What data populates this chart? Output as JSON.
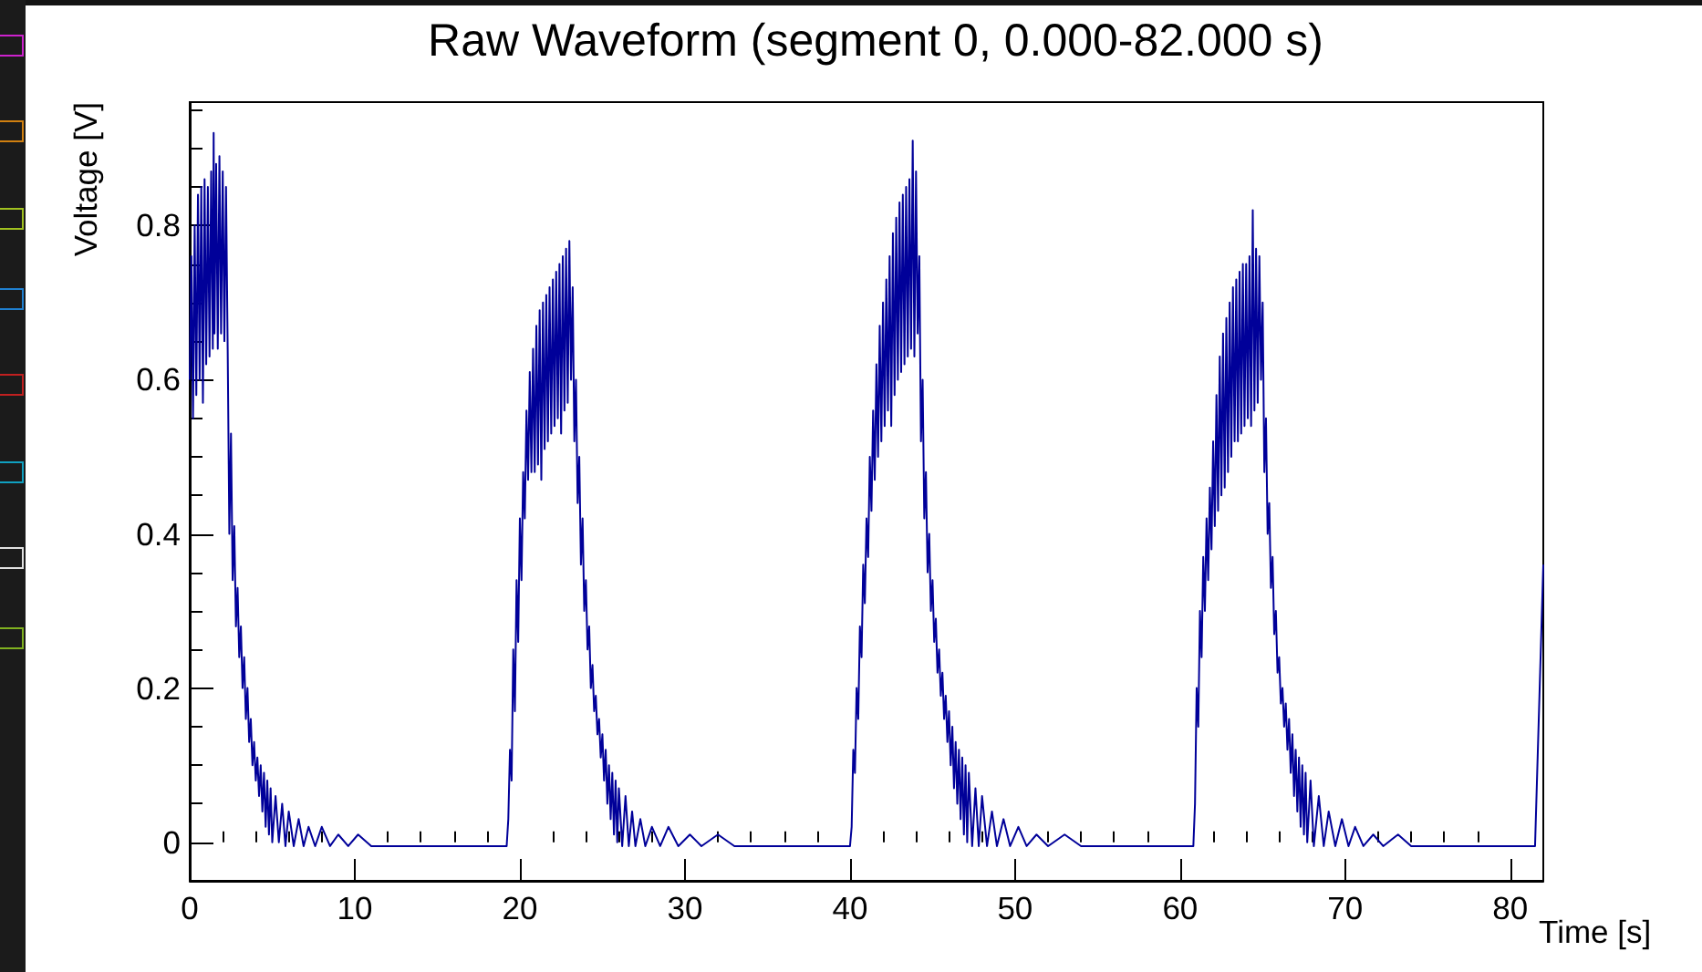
{
  "chart_data": {
    "type": "line",
    "title": "Raw Waveform (segment 0, 0.000-82.000 s)",
    "xlabel": "Time [s]",
    "ylabel": "Voltage [V]",
    "xlim": [
      0,
      82
    ],
    "ylim": [
      -0.05,
      0.96
    ],
    "xticks": [
      0,
      {
        "value": 2,
        "label": null
      },
      {
        "value": 4,
        "label": null
      },
      {
        "value": 6,
        "label": null
      },
      {
        "value": 8,
        "label": null
      },
      10,
      {
        "value": 12,
        "label": null
      },
      {
        "value": 14,
        "label": null
      },
      {
        "value": 16,
        "label": null
      },
      {
        "value": 18,
        "label": null
      },
      20,
      {
        "value": 22,
        "label": null
      },
      {
        "value": 24,
        "label": null
      },
      {
        "value": 26,
        "label": null
      },
      {
        "value": 28,
        "label": null
      },
      30,
      {
        "value": 32,
        "label": null
      },
      {
        "value": 34,
        "label": null
      },
      {
        "value": 36,
        "label": null
      },
      {
        "value": 38,
        "label": null
      },
      40,
      {
        "value": 42,
        "label": null
      },
      {
        "value": 44,
        "label": null
      },
      {
        "value": 46,
        "label": null
      },
      {
        "value": 48,
        "label": null
      },
      50,
      {
        "value": 52,
        "label": null
      },
      {
        "value": 54,
        "label": null
      },
      {
        "value": 56,
        "label": null
      },
      {
        "value": 58,
        "label": null
      },
      60,
      {
        "value": 62,
        "label": null
      },
      {
        "value": 64,
        "label": null
      },
      {
        "value": 66,
        "label": null
      },
      {
        "value": 68,
        "label": null
      },
      70,
      {
        "value": 72,
        "label": null
      },
      {
        "value": 74,
        "label": null
      },
      {
        "value": 76,
        "label": null
      },
      {
        "value": 78,
        "label": null
      },
      80
    ],
    "yticks": [
      0,
      {
        "value": 0.05,
        "label": null
      },
      {
        "value": 0.1,
        "label": null
      },
      {
        "value": 0.15,
        "label": null
      },
      0.2,
      {
        "value": 0.25,
        "label": null
      },
      {
        "value": 0.3,
        "label": null
      },
      {
        "value": 0.35,
        "label": null
      },
      0.4,
      {
        "value": 0.45,
        "label": null
      },
      {
        "value": 0.5,
        "label": null
      },
      {
        "value": 0.55,
        "label": null
      },
      0.6,
      {
        "value": 0.65,
        "label": null
      },
      {
        "value": 0.7,
        "label": null
      },
      {
        "value": 0.75,
        "label": null
      },
      0.8,
      {
        "value": 0.85,
        "label": null
      },
      {
        "value": 0.9,
        "label": null
      },
      {
        "value": 0.95,
        "label": null
      }
    ],
    "color": "#000099",
    "x": [
      0,
      0.1,
      0.2,
      0.3,
      0.4,
      0.5,
      0.6,
      0.7,
      0.8,
      0.9,
      1.0,
      1.1,
      1.2,
      1.3,
      1.4,
      1.45,
      1.5,
      1.6,
      1.7,
      1.8,
      1.9,
      2.0,
      2.1,
      2.2,
      2.3,
      2.4,
      2.5,
      2.6,
      2.7,
      2.8,
      2.9,
      3.0,
      3.1,
      3.2,
      3.3,
      3.4,
      3.5,
      3.6,
      3.7,
      3.8,
      3.9,
      4.0,
      4.1,
      4.2,
      4.3,
      4.4,
      4.5,
      4.6,
      4.7,
      4.8,
      4.9,
      5.0,
      5.2,
      5.4,
      5.6,
      5.8,
      6.0,
      6.3,
      6.6,
      6.9,
      7.2,
      7.6,
      8.0,
      8.5,
      9.0,
      9.6,
      10.2,
      11,
      19.1,
      19.2,
      19.3,
      19.4,
      19.5,
      19.6,
      19.7,
      19.8,
      19.9,
      20.0,
      20.1,
      20.2,
      20.3,
      20.4,
      20.5,
      20.6,
      20.7,
      20.8,
      20.9,
      21.0,
      21.1,
      21.2,
      21.3,
      21.4,
      21.5,
      21.6,
      21.7,
      21.8,
      21.9,
      22.0,
      22.1,
      22.2,
      22.3,
      22.4,
      22.5,
      22.6,
      22.7,
      22.8,
      22.9,
      23.0,
      23.1,
      23.2,
      23.3,
      23.4,
      23.5,
      23.6,
      23.7,
      23.8,
      23.9,
      24.0,
      24.1,
      24.2,
      24.3,
      24.4,
      24.5,
      24.6,
      24.7,
      24.8,
      24.9,
      25.0,
      25.1,
      25.2,
      25.3,
      25.4,
      25.5,
      25.6,
      25.7,
      25.8,
      25.9,
      26.0,
      26.2,
      26.4,
      26.6,
      26.8,
      27.0,
      27.3,
      27.6,
      28.0,
      28.5,
      29.0,
      29.6,
      30.3,
      31.0,
      32,
      33,
      39.9,
      40.0,
      40.1,
      40.2,
      40.3,
      40.4,
      40.5,
      40.6,
      40.7,
      40.8,
      40.9,
      41.0,
      41.1,
      41.2,
      41.3,
      41.4,
      41.5,
      41.6,
      41.7,
      41.8,
      41.9,
      42.0,
      42.1,
      42.2,
      42.3,
      42.4,
      42.5,
      42.6,
      42.7,
      42.8,
      42.9,
      43.0,
      43.1,
      43.2,
      43.3,
      43.4,
      43.5,
      43.6,
      43.7,
      43.8,
      43.9,
      44.0,
      44.1,
      44.2,
      44.3,
      44.4,
      44.5,
      44.6,
      44.7,
      44.8,
      44.9,
      45.0,
      45.1,
      45.2,
      45.3,
      45.4,
      45.5,
      45.6,
      45.7,
      45.8,
      45.9,
      46.0,
      46.1,
      46.2,
      46.3,
      46.4,
      46.5,
      46.6,
      46.7,
      46.8,
      46.9,
      47.0,
      47.1,
      47.2,
      47.4,
      47.6,
      47.8,
      48.0,
      48.3,
      48.6,
      48.9,
      49.3,
      49.7,
      50.2,
      50.7,
      51.3,
      52,
      53,
      54,
      60.7,
      60.8,
      60.9,
      61.0,
      61.1,
      61.2,
      61.3,
      61.4,
      61.5,
      61.6,
      61.7,
      61.8,
      61.9,
      62.0,
      62.1,
      62.2,
      62.3,
      62.4,
      62.5,
      62.6,
      62.7,
      62.8,
      62.9,
      63.0,
      63.1,
      63.2,
      63.3,
      63.4,
      63.5,
      63.6,
      63.7,
      63.8,
      63.9,
      64.0,
      64.1,
      64.2,
      64.3,
      64.4,
      64.5,
      64.6,
      64.7,
      64.8,
      64.9,
      65.0,
      65.1,
      65.2,
      65.3,
      65.4,
      65.5,
      65.6,
      65.7,
      65.8,
      65.9,
      66.0,
      66.1,
      66.2,
      66.3,
      66.4,
      66.5,
      66.6,
      66.7,
      66.8,
      66.9,
      67.0,
      67.1,
      67.2,
      67.3,
      67.4,
      67.5,
      67.6,
      67.7,
      67.9,
      68.1,
      68.4,
      68.7,
      69.0,
      69.4,
      69.8,
      70.2,
      70.6,
      71.1,
      71.7,
      72.3,
      73.2,
      74,
      81.5,
      82.0
    ],
    "values": [
      0.6,
      0.76,
      0.55,
      0.8,
      0.58,
      0.84,
      0.6,
      0.85,
      0.57,
      0.86,
      0.62,
      0.85,
      0.63,
      0.87,
      0.64,
      0.92,
      0.66,
      0.88,
      0.64,
      0.89,
      0.66,
      0.87,
      0.65,
      0.85,
      0.64,
      0.4,
      0.53,
      0.34,
      0.41,
      0.28,
      0.33,
      0.24,
      0.28,
      0.2,
      0.24,
      0.16,
      0.2,
      0.13,
      0.16,
      0.1,
      0.13,
      0.08,
      0.11,
      0.06,
      0.1,
      0.04,
      0.09,
      0.02,
      0.08,
      0.01,
      0.07,
      0.0,
      0.06,
      0.0,
      0.05,
      -0.005,
      0.04,
      -0.005,
      0.03,
      -0.005,
      0.02,
      -0.005,
      0.02,
      -0.005,
      0.01,
      -0.005,
      0.01,
      -0.005,
      -0.005,
      -0.005,
      0.03,
      0.12,
      0.08,
      0.25,
      0.17,
      0.34,
      0.26,
      0.42,
      0.34,
      0.48,
      0.42,
      0.56,
      0.47,
      0.61,
      0.48,
      0.64,
      0.48,
      0.67,
      0.49,
      0.69,
      0.47,
      0.7,
      0.51,
      0.71,
      0.52,
      0.72,
      0.53,
      0.73,
      0.54,
      0.74,
      0.55,
      0.75,
      0.53,
      0.76,
      0.56,
      0.77,
      0.57,
      0.78,
      0.6,
      0.72,
      0.52,
      0.6,
      0.44,
      0.5,
      0.36,
      0.42,
      0.3,
      0.34,
      0.25,
      0.28,
      0.2,
      0.23,
      0.17,
      0.19,
      0.14,
      0.16,
      0.11,
      0.14,
      0.08,
      0.12,
      0.05,
      0.1,
      0.03,
      0.09,
      0.01,
      0.08,
      0.0,
      0.07,
      -0.005,
      0.06,
      -0.005,
      0.04,
      -0.005,
      0.03,
      -0.005,
      0.02,
      -0.005,
      0.02,
      -0.005,
      0.01,
      -0.005,
      0.01,
      -0.005,
      -0.005,
      -0.005,
      0.02,
      0.12,
      0.09,
      0.2,
      0.16,
      0.28,
      0.24,
      0.36,
      0.31,
      0.42,
      0.37,
      0.5,
      0.43,
      0.56,
      0.47,
      0.62,
      0.5,
      0.67,
      0.52,
      0.7,
      0.54,
      0.73,
      0.56,
      0.76,
      0.54,
      0.79,
      0.58,
      0.81,
      0.6,
      0.83,
      0.61,
      0.84,
      0.62,
      0.85,
      0.63,
      0.86,
      0.64,
      0.91,
      0.63,
      0.87,
      0.66,
      0.76,
      0.52,
      0.6,
      0.42,
      0.48,
      0.35,
      0.4,
      0.3,
      0.34,
      0.26,
      0.29,
      0.22,
      0.25,
      0.19,
      0.22,
      0.16,
      0.19,
      0.13,
      0.17,
      0.1,
      0.15,
      0.07,
      0.13,
      0.05,
      0.12,
      0.03,
      0.11,
      0.01,
      0.1,
      0.0,
      0.09,
      -0.005,
      0.07,
      -0.005,
      0.06,
      -0.005,
      0.04,
      -0.005,
      0.03,
      -0.005,
      0.02,
      -0.005,
      0.01,
      -0.005,
      0.01,
      -0.005,
      -0.005,
      -0.005,
      0.05,
      0.2,
      0.15,
      0.3,
      0.24,
      0.37,
      0.3,
      0.42,
      0.34,
      0.46,
      0.38,
      0.52,
      0.41,
      0.58,
      0.43,
      0.63,
      0.45,
      0.66,
      0.46,
      0.68,
      0.48,
      0.7,
      0.5,
      0.72,
      0.52,
      0.73,
      0.52,
      0.74,
      0.53,
      0.75,
      0.54,
      0.75,
      0.55,
      0.76,
      0.54,
      0.82,
      0.56,
      0.77,
      0.57,
      0.76,
      0.6,
      0.7,
      0.48,
      0.55,
      0.4,
      0.44,
      0.33,
      0.37,
      0.27,
      0.3,
      0.22,
      0.24,
      0.18,
      0.2,
      0.15,
      0.18,
      0.12,
      0.16,
      0.09,
      0.14,
      0.06,
      0.12,
      0.04,
      0.11,
      0.02,
      0.1,
      0.01,
      0.09,
      0.0,
      0.08,
      -0.005,
      0.06,
      -0.005,
      0.04,
      -0.005,
      0.03,
      -0.005,
      0.02,
      -0.005,
      0.01,
      -0.005,
      0.01,
      -0.005,
      -0.005,
      0.36
    ]
  }
}
